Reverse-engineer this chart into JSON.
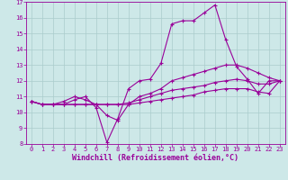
{
  "xlabel": "Windchill (Refroidissement éolien,°C)",
  "background_color": "#cde8e8",
  "line_color": "#990099",
  "grid_color": "#aacccc",
  "spine_color": "#8800aa",
  "xlim": [
    -0.5,
    23.5
  ],
  "ylim": [
    8,
    17
  ],
  "xticks": [
    0,
    1,
    2,
    3,
    4,
    5,
    6,
    7,
    8,
    9,
    10,
    11,
    12,
    13,
    14,
    15,
    16,
    17,
    18,
    19,
    20,
    21,
    22,
    23
  ],
  "yticks": [
    8,
    9,
    10,
    11,
    12,
    13,
    14,
    15,
    16,
    17
  ],
  "series": [
    [
      10.7,
      10.5,
      10.5,
      10.5,
      10.8,
      11.0,
      10.3,
      8.1,
      9.6,
      11.5,
      12.0,
      12.1,
      13.1,
      15.6,
      15.8,
      15.8,
      16.3,
      16.8,
      14.6,
      12.9,
      12.1,
      11.2,
      12.0,
      12.0
    ],
    [
      10.7,
      10.5,
      10.5,
      10.7,
      11.0,
      10.8,
      10.5,
      9.8,
      9.5,
      10.5,
      11.0,
      11.2,
      11.5,
      12.0,
      12.2,
      12.4,
      12.6,
      12.8,
      13.0,
      13.0,
      12.8,
      12.5,
      12.2,
      12.0
    ],
    [
      10.7,
      10.5,
      10.5,
      10.5,
      10.5,
      10.5,
      10.5,
      10.5,
      10.5,
      10.6,
      10.8,
      11.0,
      11.2,
      11.4,
      11.5,
      11.6,
      11.7,
      11.9,
      12.0,
      12.1,
      12.0,
      11.8,
      11.8,
      12.0
    ],
    [
      10.7,
      10.5,
      10.5,
      10.5,
      10.5,
      10.5,
      10.5,
      10.5,
      10.5,
      10.5,
      10.6,
      10.7,
      10.8,
      10.9,
      11.0,
      11.1,
      11.3,
      11.4,
      11.5,
      11.5,
      11.5,
      11.3,
      11.2,
      12.0
    ]
  ],
  "marker": "+",
  "markersize": 3.5,
  "linewidth": 0.8,
  "tick_fontsize": 5.0,
  "xlabel_fontsize": 6.0
}
